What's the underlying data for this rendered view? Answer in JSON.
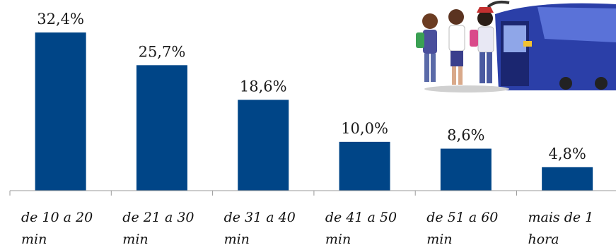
{
  "chart_data": {
    "type": "bar",
    "categories": [
      [
        "de 10 a 20",
        "min"
      ],
      [
        "de 21 a 30",
        "min"
      ],
      [
        "de 31 a 40",
        "min"
      ],
      [
        "de 41 a 50",
        "min"
      ],
      [
        "de 51 a 60",
        "min"
      ],
      [
        "mais de 1",
        "hora"
      ]
    ],
    "values": [
      32.4,
      25.7,
      18.6,
      10.0,
      8.6,
      4.8
    ],
    "value_labels": [
      "32,4%",
      "25,7%",
      "18,6%",
      "10,0%",
      "8,6%",
      "4,8%"
    ],
    "title": "",
    "xlabel": "",
    "ylabel": "",
    "ylim": [
      0,
      32.4
    ],
    "grid": false,
    "bar_color": "#004587"
  },
  "decoration": {
    "icon": "students-boarding-bus-illustration"
  }
}
